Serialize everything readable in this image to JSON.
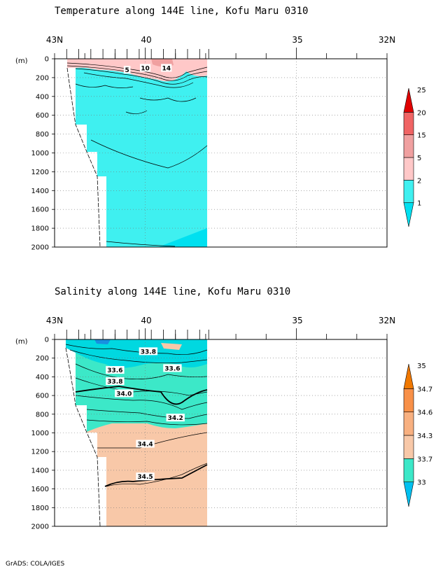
{
  "footer": "GrADS: COLA/IGES",
  "chart_data": [
    {
      "type": "heatmap",
      "title": "Temperature along 144E line, Kofu Maru 0310",
      "x_tick_labels": [
        "43N",
        "40",
        "35",
        "32N"
      ],
      "x_ticks_lat": [
        43,
        40,
        35,
        32
      ],
      "xlim": [
        43,
        32
      ],
      "y_unit_label": "(m)",
      "y_tick_labels": [
        "0",
        "200",
        "400",
        "600",
        "800",
        "1000",
        "1200",
        "1400",
        "1600",
        "1800",
        "2000"
      ],
      "ylim": [
        0,
        2000
      ],
      "grid": "dotted",
      "section_extent_lat": [
        42.6,
        37.9
      ],
      "contour_labels": [
        {
          "text": "10",
          "lat": 40.0,
          "depth": 100
        },
        {
          "text": "14",
          "lat": 39.3,
          "depth": 100
        },
        {
          "text": "5",
          "lat": 40.6,
          "depth": 120
        }
      ],
      "colorbar": {
        "levels": [
          "1",
          "2",
          "5",
          "15",
          "20",
          "25"
        ],
        "colors": [
          "#00e0f0",
          "#3ff0f0",
          "#ffc8c8",
          "#f0a0a0",
          "#f06464",
          "#e00000"
        ]
      }
    },
    {
      "type": "heatmap",
      "title": "Salinity along 144E line, Kofu Maru 0310",
      "x_tick_labels": [
        "43N",
        "40",
        "35",
        "32N"
      ],
      "x_ticks_lat": [
        43,
        40,
        35,
        32
      ],
      "xlim": [
        43,
        32
      ],
      "y_unit_label": "(m)",
      "y_tick_labels": [
        "0",
        "200",
        "400",
        "600",
        "800",
        "1000",
        "1200",
        "1400",
        "1600",
        "1800",
        "2000"
      ],
      "ylim": [
        0,
        2000
      ],
      "grid": "dotted",
      "section_extent_lat": [
        42.6,
        37.9
      ],
      "contour_labels": [
        {
          "text": "33.8",
          "lat": 39.9,
          "depth": 130
        },
        {
          "text": "33.6",
          "lat": 39.1,
          "depth": 310
        },
        {
          "text": "33.6",
          "lat": 41.0,
          "depth": 330
        },
        {
          "text": "33.8",
          "lat": 41.0,
          "depth": 450
        },
        {
          "text": "34.0",
          "lat": 40.7,
          "depth": 580
        },
        {
          "text": "34.2",
          "lat": 39.0,
          "depth": 840
        },
        {
          "text": "34.4",
          "lat": 40.0,
          "depth": 1120
        },
        {
          "text": "34.5",
          "lat": 40.0,
          "depth": 1470
        }
      ],
      "colorbar": {
        "levels": [
          "33",
          "33.7",
          "34.3",
          "34.6",
          "34.7",
          "35"
        ],
        "colors": [
          "#00c0f0",
          "#3ce8c8",
          "#f8c8a8",
          "#f8b080",
          "#f89048",
          "#f07800"
        ]
      }
    }
  ]
}
